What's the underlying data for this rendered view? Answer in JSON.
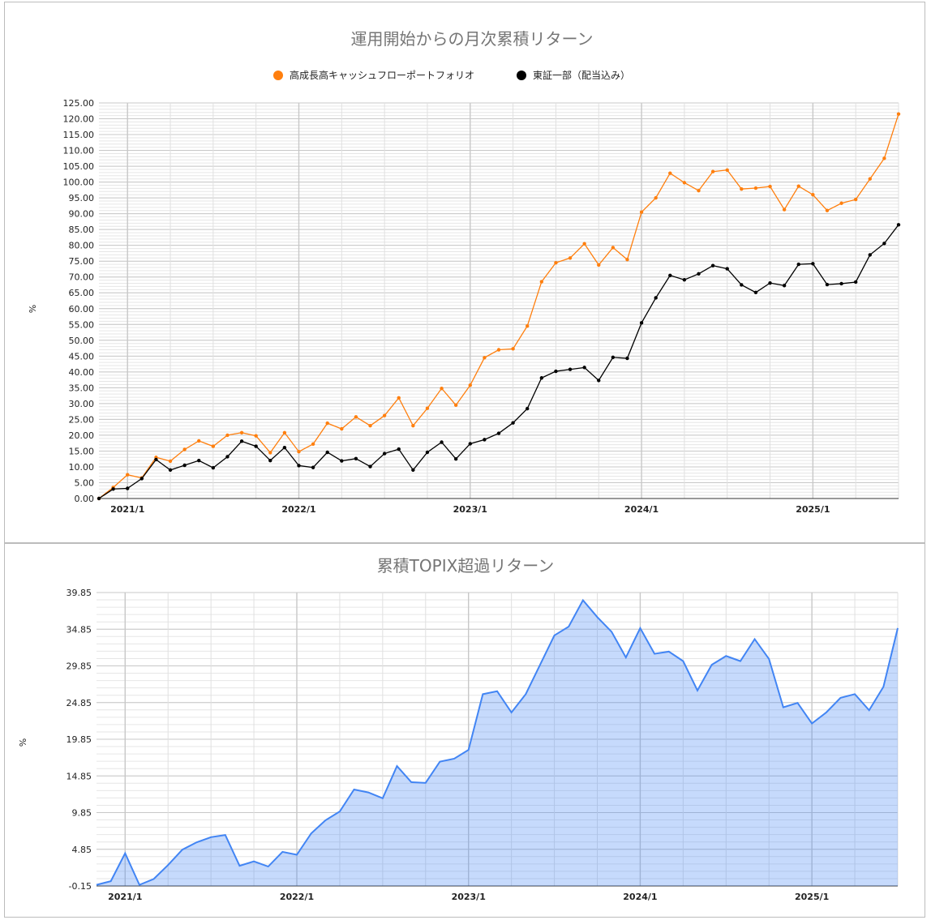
{
  "chart_data": [
    {
      "type": "line",
      "title": "運用開始からの月次累積リターン",
      "ylabel": "%",
      "ylim": [
        0,
        125
      ],
      "yticks": [
        "0.00",
        "5.00",
        "10.00",
        "15.00",
        "20.00",
        "25.00",
        "30.00",
        "35.00",
        "40.00",
        "45.00",
        "50.00",
        "55.00",
        "60.00",
        "65.00",
        "70.00",
        "75.00",
        "80.00",
        "85.00",
        "90.00",
        "95.00",
        "100.00",
        "105.00",
        "110.00",
        "115.00",
        "120.00",
        "125.00"
      ],
      "xlabels": [
        "2021/1",
        "2022/1",
        "2023/1",
        "2024/1",
        "2025/1"
      ],
      "x_start": "2020/11",
      "x_end": "2025/6",
      "grid": true,
      "legend_position": "top",
      "series": [
        {
          "name": "高成長高キャッシュフローポートフォリオ",
          "color": "#ff7f0e",
          "values": [
            0.0,
            3.5,
            7.5,
            6.5,
            13.0,
            11.8,
            15.5,
            18.2,
            16.5,
            20.0,
            20.8,
            19.8,
            14.5,
            20.8,
            14.8,
            17.2,
            23.8,
            22.0,
            25.8,
            23.0,
            26.2,
            31.8,
            23.0,
            28.5,
            34.8,
            29.5,
            35.8,
            44.5,
            47.0,
            47.3,
            54.5,
            68.5,
            74.5,
            76.0,
            80.5,
            73.8,
            79.3,
            75.5,
            90.5,
            95.0,
            102.8,
            99.8,
            97.3,
            103.3,
            103.8,
            97.8,
            98.1,
            98.6,
            91.3,
            98.7,
            96.0,
            91.0,
            93.3,
            94.5,
            101.0,
            107.5,
            121.5
          ]
        },
        {
          "name": "東証一部（配当込み）",
          "color": "#000000",
          "values": [
            0.0,
            3.0,
            3.2,
            6.3,
            12.3,
            9.0,
            10.5,
            12.0,
            9.7,
            13.2,
            18.1,
            16.5,
            12.0,
            16.1,
            10.4,
            9.8,
            14.6,
            11.9,
            12.6,
            10.1,
            14.2,
            15.6,
            9.0,
            14.6,
            17.8,
            12.5,
            17.3,
            18.6,
            20.6,
            23.9,
            28.4,
            38.1,
            40.2,
            40.8,
            41.4,
            37.3,
            44.6,
            44.3,
            55.5,
            63.4,
            70.5,
            69.1,
            71.0,
            73.6,
            72.6,
            67.5,
            65.1,
            68.1,
            67.3,
            74.0,
            74.2,
            67.6,
            67.9,
            68.4,
            77.0,
            80.6,
            86.5
          ]
        }
      ]
    },
    {
      "type": "area",
      "title": "累積TOPIX超過リターン",
      "ylabel": "%",
      "ylim": [
        -0.15,
        39.85
      ],
      "yticks": [
        "-0.15",
        "4.85",
        "9.85",
        "14.85",
        "19.85",
        "24.85",
        "29.85",
        "34.85",
        "39.85"
      ],
      "xlabels": [
        "2021/1",
        "2022/1",
        "2023/1",
        "2024/1",
        "2025/1"
      ],
      "x_start": "2020/11",
      "x_end": "2025/6",
      "grid": true,
      "series": [
        {
          "color": "#4285f4",
          "values": [
            0.0,
            0.5,
            4.3,
            0.0,
            0.8,
            2.7,
            4.8,
            5.8,
            6.5,
            6.8,
            2.6,
            3.2,
            2.5,
            4.5,
            4.1,
            7.0,
            8.8,
            10.0,
            13.0,
            12.6,
            11.8,
            16.2,
            14.0,
            13.9,
            16.8,
            17.2,
            18.4,
            26.0,
            26.4,
            23.5,
            26.0,
            30.0,
            34.0,
            35.2,
            38.8,
            36.5,
            34.5,
            31.0,
            35.0,
            31.5,
            31.8,
            30.5,
            26.5,
            30.0,
            31.2,
            30.5,
            33.5,
            30.8,
            24.2,
            24.8,
            22.0,
            23.5,
            25.5,
            26.0,
            23.8,
            27.0,
            35.0
          ]
        }
      ]
    }
  ]
}
